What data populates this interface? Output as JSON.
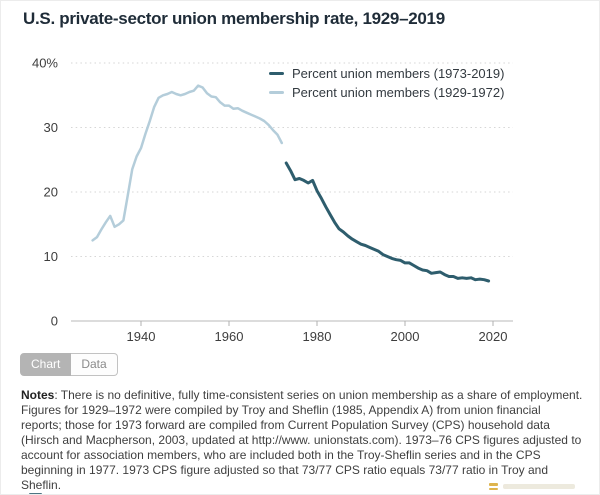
{
  "title": "U.S. private-sector union membership rate, 1929–2019",
  "toolbar": {
    "chart_label": "Chart",
    "data_label": "Data"
  },
  "notes_label": "Notes",
  "notes_text": ": There is no definitive, fully time-consistent series on union membership as a share of employment. Figures for 1929–1972 were compiled by Troy and Sheflin (1985, Appendix A) from union financial reports; those for 1973 forward are compiled from Current Population Survey (CPS) household data (Hirsch and Macpherson, 2003, updated at http://www. unionstats.com). 1973–76 CPS figures adjusted to account for association members, who are included both in the Troy-Sheflin series and in the CPS beginning in 1977. 1973 CPS figure adjusted so that 73/77 CPS ratio equals 73/77 ratio in Troy and Sheflin.",
  "watermark": {
    "bars_color": "#d9a82e"
  },
  "colors": {
    "grid": "#d6d6d6",
    "axis_line": "#c8c8c8",
    "tick": "#b0b0b0",
    "axis_text": "#3d3d3d",
    "title_text": "#1f2c38"
  },
  "chart_data": {
    "type": "line",
    "title": "U.S. private-sector union membership rate, 1929–2019",
    "xlabel": "",
    "ylabel": "",
    "ylim": [
      0,
      40
    ],
    "xlim": [
      1929,
      2020
    ],
    "grid": "horizontal dotted",
    "legend_position": "top-right inside plot",
    "x_ticks": [
      {
        "label": "1940",
        "year": 1940
      },
      {
        "label": "1960",
        "year": 1960
      },
      {
        "label": "1980",
        "year": 1980
      },
      {
        "label": "2000",
        "year": 2000
      },
      {
        "label": "2020",
        "year": 2020
      }
    ],
    "y_ticks": [
      {
        "label": "40%",
        "value": 40
      },
      {
        "label": "30",
        "value": 30
      },
      {
        "label": "20",
        "value": 20
      },
      {
        "label": "10",
        "value": 10
      },
      {
        "label": "0",
        "value": 0
      }
    ],
    "series": [
      {
        "name": "Percent union members (1973-2019)",
        "color": "#2e5d6d",
        "stroke_width": 3,
        "x_start": 1973,
        "values": [
          24.5,
          23.3,
          21.9,
          22.1,
          21.8,
          21.4,
          21.8,
          20.2,
          19.0,
          17.7,
          16.5,
          15.3,
          14.3,
          13.8,
          13.2,
          12.7,
          12.3,
          11.9,
          11.7,
          11.4,
          11.1,
          10.8,
          10.3,
          10.0,
          9.7,
          9.5,
          9.4,
          9.0,
          9.0,
          8.6,
          8.2,
          7.9,
          7.8,
          7.4,
          7.5,
          7.6,
          7.2,
          6.9,
          6.9,
          6.6,
          6.7,
          6.6,
          6.7,
          6.4,
          6.5,
          6.4,
          6.2
        ]
      },
      {
        "name": "Percent union members (1929-1972)",
        "color": "#b4cdda",
        "stroke_width": 2.5,
        "x_start": 1929,
        "values": [
          12.5,
          13.0,
          14.2,
          15.3,
          16.3,
          14.6,
          15.0,
          15.6,
          19.5,
          23.5,
          25.5,
          26.8,
          29.0,
          31.0,
          33.2,
          34.6,
          35.0,
          35.2,
          35.5,
          35.2,
          35.0,
          35.2,
          35.5,
          35.7,
          36.5,
          36.2,
          35.3,
          34.8,
          34.7,
          33.9,
          33.4,
          33.4,
          32.9,
          33.0,
          32.6,
          32.3,
          32.0,
          31.7,
          31.4,
          31.0,
          30.4,
          29.6,
          28.9,
          27.6
        ]
      }
    ]
  }
}
